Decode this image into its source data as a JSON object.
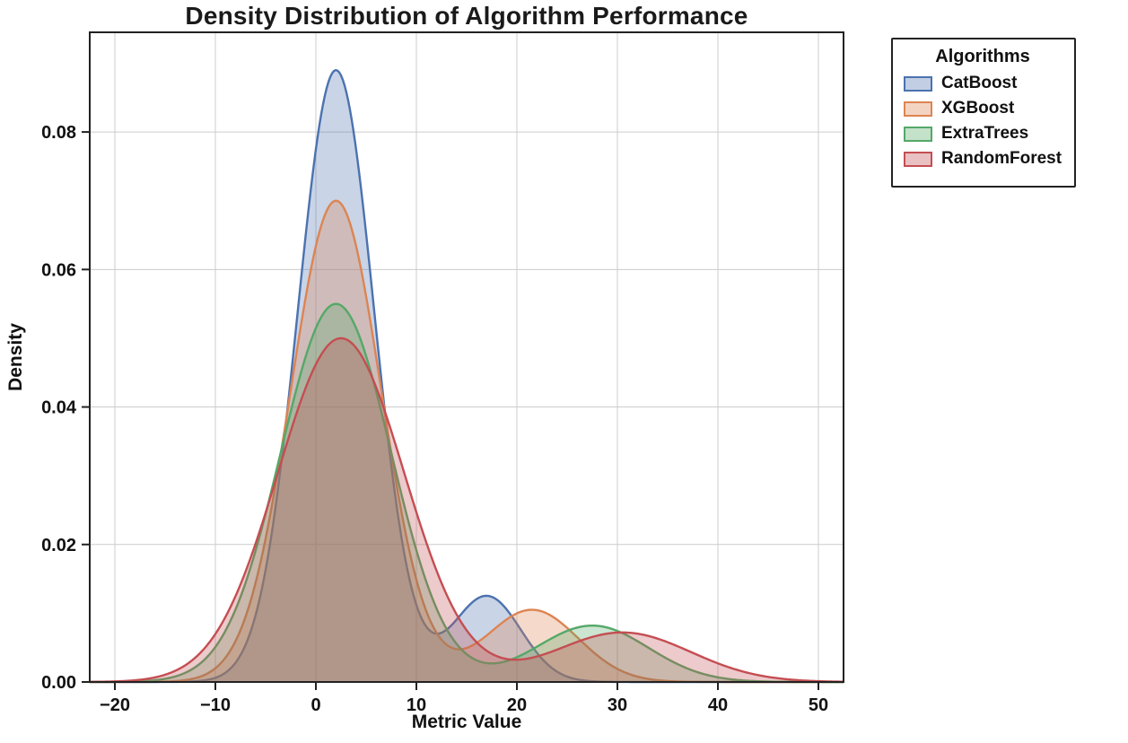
{
  "page": {
    "background": "#ffffff"
  },
  "chart_data": {
    "type": "area",
    "kind": "kde-density",
    "title": "Density Distribution of Algorithm Performance",
    "xlabel": "Metric Value",
    "ylabel": "Density",
    "xlim": [
      -22.5,
      52.5
    ],
    "ylim": [
      0,
      0.0945
    ],
    "grid": true,
    "grid_color": "#cccccc",
    "spine_color": "#222222",
    "tick_color": "#111111",
    "fill_alpha": 0.3,
    "xticks": [
      {
        "v": -20,
        "label": "−20"
      },
      {
        "v": -10,
        "label": "−10"
      },
      {
        "v": 0,
        "label": "0"
      },
      {
        "v": 10,
        "label": "10"
      },
      {
        "v": 20,
        "label": "20"
      },
      {
        "v": 30,
        "label": "30"
      },
      {
        "v": 40,
        "label": "40"
      },
      {
        "v": 50,
        "label": "50"
      }
    ],
    "yticks": [
      {
        "v": 0.0,
        "label": "0.00"
      },
      {
        "v": 0.02,
        "label": "0.02"
      },
      {
        "v": 0.04,
        "label": "0.04"
      },
      {
        "v": 0.06,
        "label": "0.06"
      },
      {
        "v": 0.08,
        "label": "0.08"
      }
    ],
    "legend": {
      "title": "Algorithms",
      "position": "outside-top-right"
    },
    "series": [
      {
        "name": "CatBoost",
        "color": "#4C72B0",
        "peaks": [
          {
            "mean": 2.0,
            "sd": 3.8,
            "height": 0.089
          },
          {
            "mean": 17.0,
            "sd": 3.4,
            "height": 0.0125
          }
        ]
      },
      {
        "name": "XGBoost",
        "color": "#DD8452",
        "peaks": [
          {
            "mean": 2.0,
            "sd": 4.5,
            "height": 0.07
          },
          {
            "mean": 21.5,
            "sd": 4.6,
            "height": 0.0105
          }
        ]
      },
      {
        "name": "ExtraTrees",
        "color": "#55A868",
        "peaks": [
          {
            "mean": 2.0,
            "sd": 5.5,
            "height": 0.055
          },
          {
            "mean": 27.5,
            "sd": 5.6,
            "height": 0.0082
          }
        ]
      },
      {
        "name": "RandomForest",
        "color": "#C44E52",
        "peaks": [
          {
            "mean": 2.5,
            "sd": 6.3,
            "height": 0.05
          },
          {
            "mean": 30.5,
            "sd": 6.8,
            "height": 0.0072
          }
        ]
      }
    ]
  }
}
